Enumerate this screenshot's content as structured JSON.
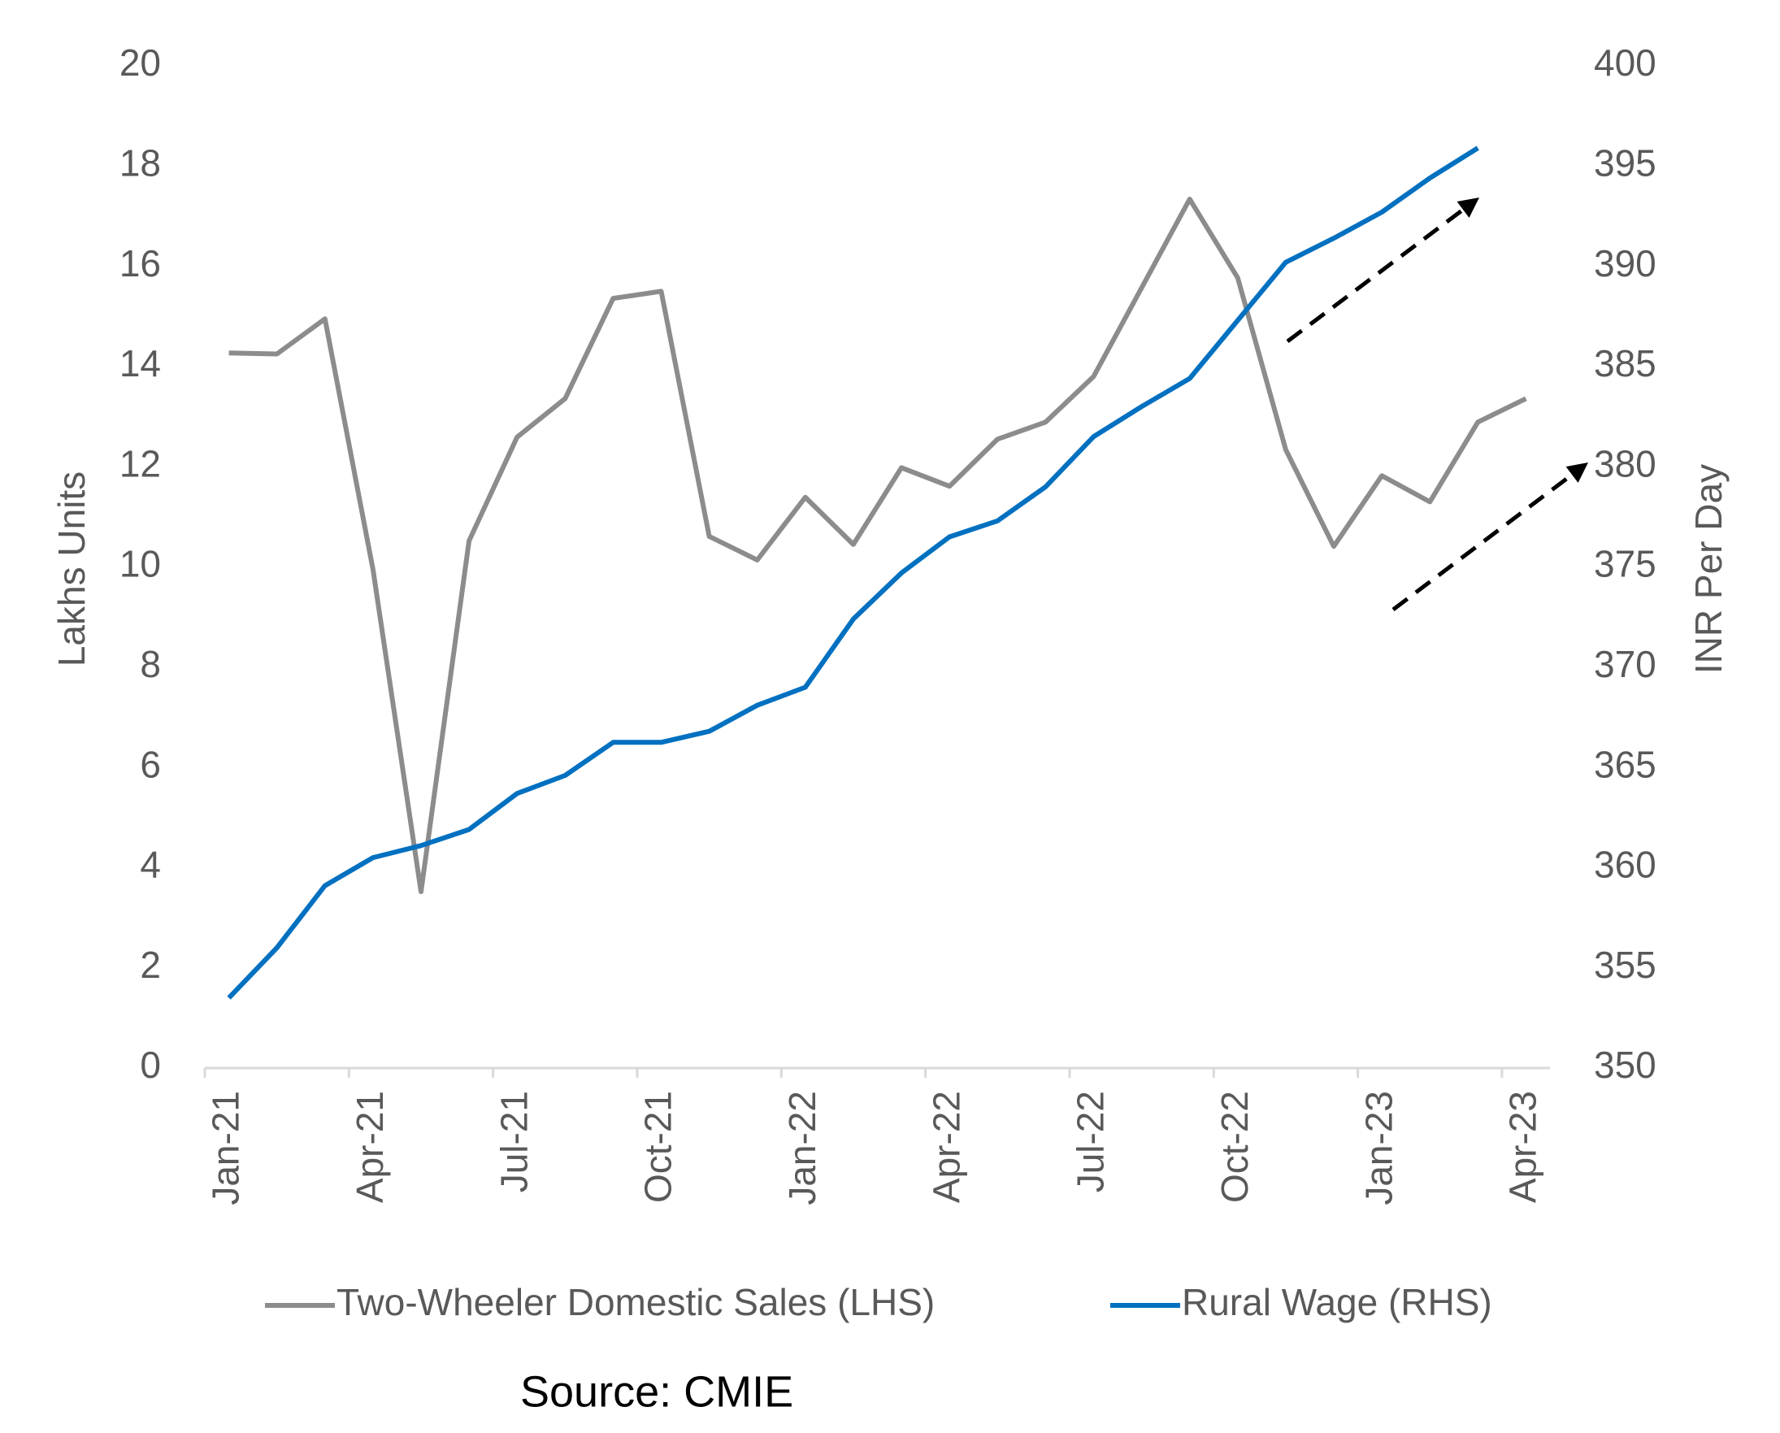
{
  "chart_data": {
    "type": "line",
    "categories": [
      "Jan-21",
      null,
      null,
      "Apr-21",
      null,
      null,
      "Jul-21",
      null,
      null,
      "Oct-21",
      null,
      null,
      "Jan-22",
      null,
      null,
      "Apr-22",
      null,
      null,
      "Jul-22",
      null,
      null,
      "Oct-22",
      null,
      null,
      "Jan-23",
      null,
      null,
      "Apr-23"
    ],
    "series": [
      {
        "name": "Two-Wheeler Domestic Sales (LHS)",
        "color": "#8c8c8c",
        "axis": "y",
        "values": [
          14.27,
          14.25,
          14.95,
          9.95,
          3.52,
          10.52,
          12.59,
          13.36,
          15.36,
          15.5,
          10.61,
          10.14,
          11.39,
          10.45,
          11.98,
          11.61,
          12.55,
          12.89,
          13.8,
          15.57,
          17.34,
          15.77,
          12.34,
          10.41,
          11.82,
          11.3,
          12.89,
          13.36
        ]
      },
      {
        "name": "Rural Wage (RHS)",
        "color": "#0070c0",
        "axis": "y2",
        "values": [
          353.5,
          356.0,
          359.1,
          360.5,
          361.1,
          361.9,
          363.7,
          364.6,
          366.25,
          366.25,
          366.8,
          368.1,
          369.0,
          372.4,
          374.7,
          376.5,
          377.3,
          379.0,
          381.5,
          383.0,
          384.4,
          387.3,
          390.2,
          391.4,
          392.7,
          394.4,
          395.9,
          null
        ]
      }
    ],
    "y_label": "Lakhs Units",
    "y2_label": "INR Per Day",
    "ylim": [
      0,
      20
    ],
    "yticks": [
      0,
      2,
      4,
      6,
      8,
      10,
      12,
      14,
      16,
      18,
      20
    ],
    "y2lim": [
      350,
      400
    ],
    "y2ticks": [
      350,
      355,
      360,
      365,
      370,
      375,
      380,
      385,
      390,
      395,
      400
    ],
    "grid": false,
    "legend": "bottom",
    "source": "Source:  CMIE"
  }
}
